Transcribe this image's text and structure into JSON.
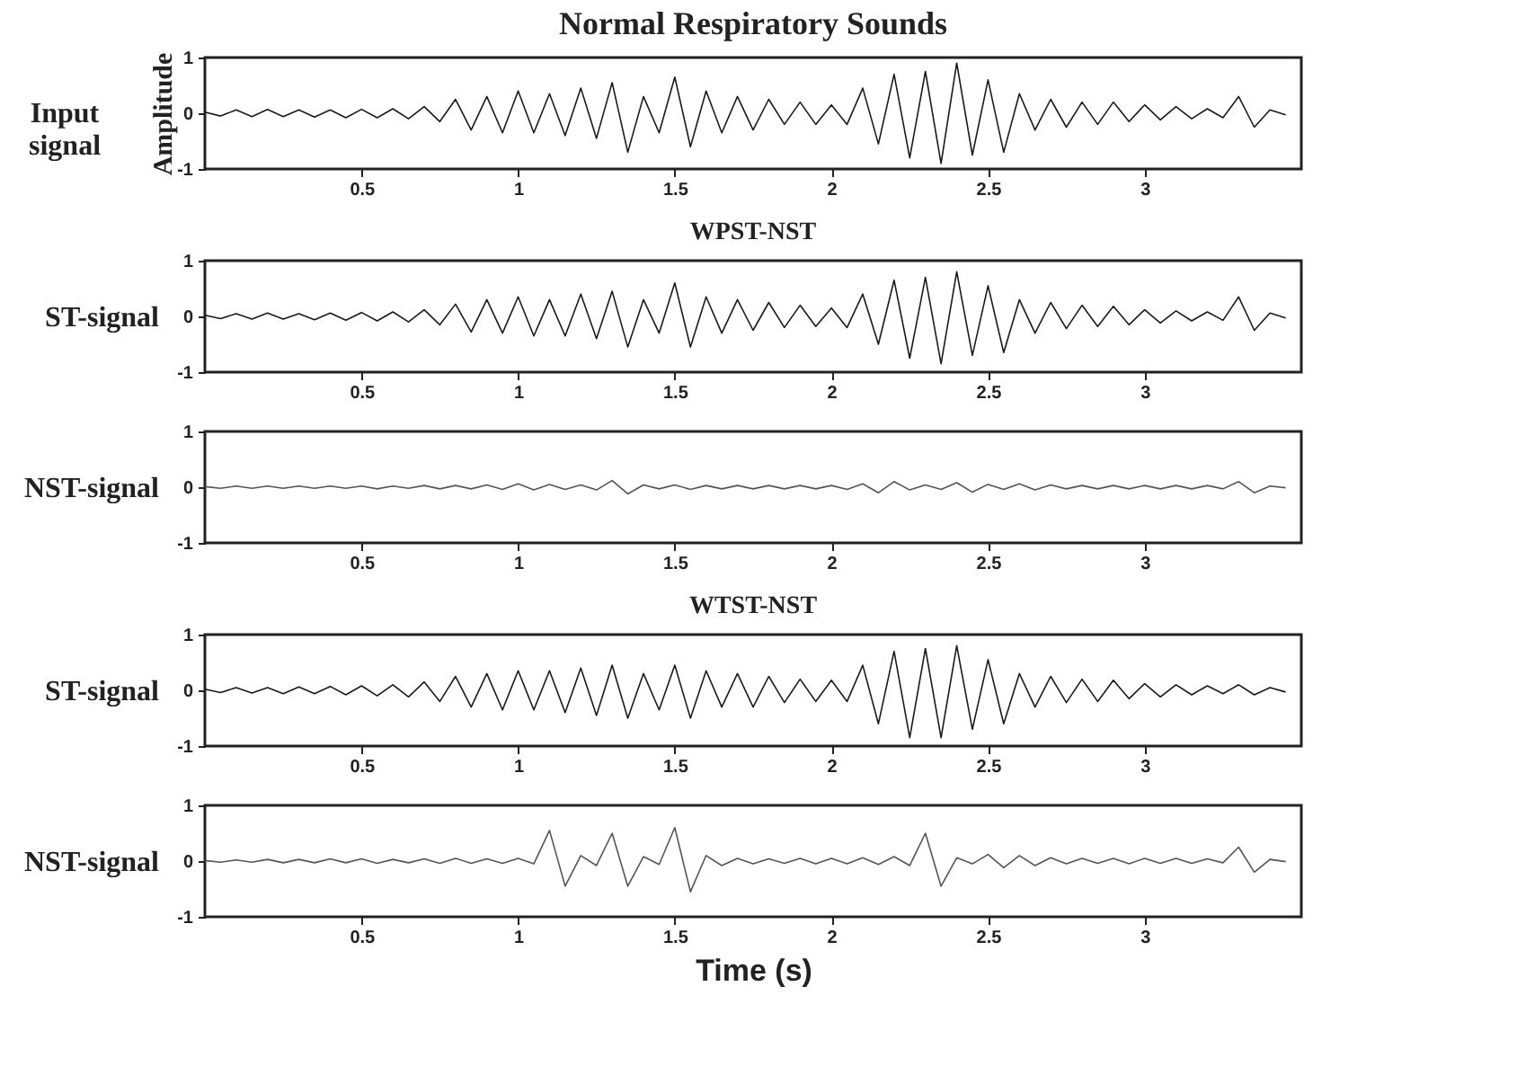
{
  "chart_data": [
    {
      "type": "line",
      "title": "Normal Respiratory Sounds",
      "ylabel": "Amplitude",
      "annotations": [
        "Input signal"
      ],
      "color": "#1a1a1a",
      "xlim": [
        0,
        3.5
      ],
      "ylim": [
        -1,
        1
      ],
      "xticks": [
        0.5,
        1,
        1.5,
        2,
        2.5,
        3
      ],
      "yticks": [
        -1,
        0,
        1
      ],
      "x": [
        0,
        0.05,
        0.1,
        0.15,
        0.2,
        0.25,
        0.3,
        0.35,
        0.4,
        0.45,
        0.5,
        0.55,
        0.6,
        0.65,
        0.7,
        0.75,
        0.8,
        0.85,
        0.9,
        0.95,
        1,
        1.05,
        1.1,
        1.15,
        1.2,
        1.25,
        1.3,
        1.35,
        1.4,
        1.45,
        1.5,
        1.55,
        1.6,
        1.65,
        1.7,
        1.75,
        1.8,
        1.85,
        1.9,
        1.95,
        2,
        2.05,
        2.1,
        2.15,
        2.2,
        2.25,
        2.3,
        2.35,
        2.4,
        2.45,
        2.5,
        2.55,
        2.6,
        2.65,
        2.7,
        2.75,
        2.8,
        2.85,
        2.9,
        2.95,
        3,
        3.05,
        3.1,
        3.15,
        3.2,
        3.25,
        3.3,
        3.35,
        3.4,
        3.45
      ],
      "values": [
        0.02,
        -0.05,
        0.06,
        -0.06,
        0.07,
        -0.06,
        0.06,
        -0.07,
        0.06,
        -0.08,
        0.07,
        -0.08,
        0.08,
        -0.1,
        0.12,
        -0.15,
        0.25,
        -0.3,
        0.3,
        -0.35,
        0.4,
        -0.35,
        0.35,
        -0.4,
        0.45,
        -0.45,
        0.55,
        -0.7,
        0.3,
        -0.35,
        0.65,
        -0.6,
        0.4,
        -0.35,
        0.3,
        -0.3,
        0.25,
        -0.2,
        0.2,
        -0.2,
        0.15,
        -0.2,
        0.45,
        -0.55,
        0.7,
        -0.8,
        0.75,
        -0.9,
        0.9,
        -0.75,
        0.6,
        -0.7,
        0.35,
        -0.3,
        0.25,
        -0.25,
        0.2,
        -0.2,
        0.2,
        -0.15,
        0.15,
        -0.12,
        0.12,
        -0.1,
        0.08,
        -0.08,
        0.3,
        -0.25,
        0.06,
        -0.03
      ]
    },
    {
      "type": "line",
      "title": "WPST-NST",
      "ylabel": "ST-signal",
      "color": "#1a1a1a",
      "xlim": [
        0,
        3.5
      ],
      "ylim": [
        -1,
        1
      ],
      "xticks": [
        0.5,
        1,
        1.5,
        2,
        2.5,
        3
      ],
      "yticks": [
        -1,
        0,
        1
      ],
      "x": [
        0,
        0.05,
        0.1,
        0.15,
        0.2,
        0.25,
        0.3,
        0.35,
        0.4,
        0.45,
        0.5,
        0.55,
        0.6,
        0.65,
        0.7,
        0.75,
        0.8,
        0.85,
        0.9,
        0.95,
        1,
        1.05,
        1.1,
        1.15,
        1.2,
        1.25,
        1.3,
        1.35,
        1.4,
        1.45,
        1.5,
        1.55,
        1.6,
        1.65,
        1.7,
        1.75,
        1.8,
        1.85,
        1.9,
        1.95,
        2,
        2.05,
        2.1,
        2.15,
        2.2,
        2.25,
        2.3,
        2.35,
        2.4,
        2.45,
        2.5,
        2.55,
        2.6,
        2.65,
        2.7,
        2.75,
        2.8,
        2.85,
        2.9,
        2.95,
        3,
        3.05,
        3.1,
        3.15,
        3.2,
        3.25,
        3.3,
        3.35,
        3.4,
        3.45
      ],
      "values": [
        0.02,
        -0.04,
        0.05,
        -0.05,
        0.06,
        -0.05,
        0.05,
        -0.06,
        0.06,
        -0.07,
        0.07,
        -0.08,
        0.08,
        -0.1,
        0.12,
        -0.15,
        0.22,
        -0.28,
        0.3,
        -0.3,
        0.35,
        -0.35,
        0.3,
        -0.35,
        0.4,
        -0.4,
        0.45,
        -0.55,
        0.3,
        -0.3,
        0.6,
        -0.55,
        0.35,
        -0.3,
        0.3,
        -0.25,
        0.25,
        -0.2,
        0.2,
        -0.18,
        0.15,
        -0.2,
        0.4,
        -0.5,
        0.65,
        -0.75,
        0.7,
        -0.85,
        0.8,
        -0.7,
        0.55,
        -0.65,
        0.3,
        -0.3,
        0.25,
        -0.22,
        0.2,
        -0.18,
        0.18,
        -0.15,
        0.12,
        -0.12,
        0.1,
        -0.08,
        0.08,
        -0.07,
        0.35,
        -0.25,
        0.06,
        -0.03
      ]
    },
    {
      "type": "line",
      "ylabel": "NST-signal",
      "color": "#555555",
      "xlim": [
        0,
        3.5
      ],
      "ylim": [
        -1,
        1
      ],
      "xticks": [
        0.5,
        1,
        1.5,
        2,
        2.5,
        3
      ],
      "yticks": [
        -1,
        0,
        1
      ],
      "x": [
        0,
        0.05,
        0.1,
        0.15,
        0.2,
        0.25,
        0.3,
        0.35,
        0.4,
        0.45,
        0.5,
        0.55,
        0.6,
        0.65,
        0.7,
        0.75,
        0.8,
        0.85,
        0.9,
        0.95,
        1,
        1.05,
        1.1,
        1.15,
        1.2,
        1.25,
        1.3,
        1.35,
        1.4,
        1.45,
        1.5,
        1.55,
        1.6,
        1.65,
        1.7,
        1.75,
        1.8,
        1.85,
        1.9,
        1.95,
        2,
        2.05,
        2.1,
        2.15,
        2.2,
        2.25,
        2.3,
        2.35,
        2.4,
        2.45,
        2.5,
        2.55,
        2.6,
        2.65,
        2.7,
        2.75,
        2.8,
        2.85,
        2.9,
        2.95,
        3,
        3.05,
        3.1,
        3.15,
        3.2,
        3.25,
        3.3,
        3.35,
        3.4,
        3.45
      ],
      "values": [
        0.01,
        -0.02,
        0.02,
        -0.02,
        0.02,
        -0.02,
        0.02,
        -0.02,
        0.02,
        -0.02,
        0.02,
        -0.03,
        0.02,
        -0.02,
        0.03,
        -0.03,
        0.03,
        -0.03,
        0.04,
        -0.04,
        0.06,
        -0.05,
        0.05,
        -0.04,
        0.04,
        -0.05,
        0.12,
        -0.12,
        0.04,
        -0.03,
        0.04,
        -0.04,
        0.03,
        -0.03,
        0.03,
        -0.03,
        0.03,
        -0.03,
        0.03,
        -0.03,
        0.03,
        -0.04,
        0.06,
        -0.1,
        0.1,
        -0.05,
        0.04,
        -0.04,
        0.08,
        -0.09,
        0.05,
        -0.04,
        0.06,
        -0.05,
        0.04,
        -0.03,
        0.03,
        -0.03,
        0.03,
        -0.03,
        0.03,
        -0.03,
        0.03,
        -0.03,
        0.03,
        -0.03,
        0.1,
        -0.1,
        0.02,
        -0.01
      ]
    },
    {
      "type": "line",
      "title": "WTST-NST",
      "ylabel": "ST-signal",
      "color": "#1a1a1a",
      "xlim": [
        0,
        3.5
      ],
      "ylim": [
        -1,
        1
      ],
      "xticks": [
        0.5,
        1,
        1.5,
        2,
        2.5,
        3
      ],
      "yticks": [
        -1,
        0,
        1
      ],
      "x": [
        0,
        0.05,
        0.1,
        0.15,
        0.2,
        0.25,
        0.3,
        0.35,
        0.4,
        0.45,
        0.5,
        0.55,
        0.6,
        0.65,
        0.7,
        0.75,
        0.8,
        0.85,
        0.9,
        0.95,
        1,
        1.05,
        1.1,
        1.15,
        1.2,
        1.25,
        1.3,
        1.35,
        1.4,
        1.45,
        1.5,
        1.55,
        1.6,
        1.65,
        1.7,
        1.75,
        1.8,
        1.85,
        1.9,
        1.95,
        2,
        2.05,
        2.1,
        2.15,
        2.2,
        2.25,
        2.3,
        2.35,
        2.4,
        2.45,
        2.5,
        2.55,
        2.6,
        2.65,
        2.7,
        2.75,
        2.8,
        2.85,
        2.9,
        2.95,
        3,
        3.05,
        3.1,
        3.15,
        3.2,
        3.25,
        3.3,
        3.35,
        3.4,
        3.45
      ],
      "values": [
        0.02,
        -0.04,
        0.05,
        -0.05,
        0.05,
        -0.06,
        0.06,
        -0.06,
        0.07,
        -0.08,
        0.08,
        -0.1,
        0.1,
        -0.12,
        0.15,
        -0.2,
        0.25,
        -0.3,
        0.3,
        -0.35,
        0.35,
        -0.35,
        0.35,
        -0.4,
        0.4,
        -0.45,
        0.45,
        -0.5,
        0.3,
        -0.35,
        0.45,
        -0.5,
        0.35,
        -0.3,
        0.3,
        -0.3,
        0.25,
        -0.22,
        0.2,
        -0.2,
        0.18,
        -0.2,
        0.45,
        -0.6,
        0.7,
        -0.85,
        0.75,
        -0.85,
        0.8,
        -0.7,
        0.55,
        -0.6,
        0.3,
        -0.3,
        0.25,
        -0.22,
        0.2,
        -0.2,
        0.18,
        -0.15,
        0.12,
        -0.12,
        0.1,
        -0.08,
        0.08,
        -0.06,
        0.1,
        -0.08,
        0.05,
        -0.03
      ]
    },
    {
      "type": "line",
      "ylabel": "NST-signal",
      "xlabel": "Time (s)",
      "color": "#555555",
      "xlim": [
        0,
        3.5
      ],
      "ylim": [
        -1,
        1
      ],
      "xticks": [
        0.5,
        1,
        1.5,
        2,
        2.5,
        3
      ],
      "yticks": [
        -1,
        0,
        1
      ],
      "x": [
        0,
        0.05,
        0.1,
        0.15,
        0.2,
        0.25,
        0.3,
        0.35,
        0.4,
        0.45,
        0.5,
        0.55,
        0.6,
        0.65,
        0.7,
        0.75,
        0.8,
        0.85,
        0.9,
        0.95,
        1,
        1.05,
        1.1,
        1.15,
        1.2,
        1.25,
        1.3,
        1.35,
        1.4,
        1.45,
        1.5,
        1.55,
        1.6,
        1.65,
        1.7,
        1.75,
        1.8,
        1.85,
        1.9,
        1.95,
        2,
        2.05,
        2.1,
        2.15,
        2.2,
        2.25,
        2.3,
        2.35,
        2.4,
        2.45,
        2.5,
        2.55,
        2.6,
        2.65,
        2.7,
        2.75,
        2.8,
        2.85,
        2.9,
        2.95,
        3,
        3.05,
        3.1,
        3.15,
        3.2,
        3.25,
        3.3,
        3.35,
        3.4,
        3.45
      ],
      "values": [
        0.01,
        -0.02,
        0.02,
        -0.02,
        0.03,
        -0.03,
        0.03,
        -0.03,
        0.04,
        -0.03,
        0.04,
        -0.04,
        0.03,
        -0.03,
        0.04,
        -0.04,
        0.05,
        -0.04,
        0.04,
        -0.04,
        0.05,
        -0.05,
        0.55,
        -0.45,
        0.1,
        -0.08,
        0.5,
        -0.45,
        0.08,
        -0.06,
        0.6,
        -0.55,
        0.1,
        -0.08,
        0.05,
        -0.05,
        0.04,
        -0.04,
        0.05,
        -0.05,
        0.05,
        -0.05,
        0.06,
        -0.06,
        0.08,
        -0.08,
        0.5,
        -0.45,
        0.06,
        -0.05,
        0.12,
        -0.12,
        0.1,
        -0.08,
        0.06,
        -0.05,
        0.05,
        -0.04,
        0.05,
        -0.05,
        0.05,
        -0.04,
        0.05,
        -0.04,
        0.04,
        -0.03,
        0.25,
        -0.2,
        0.03,
        -0.01
      ]
    }
  ]
}
